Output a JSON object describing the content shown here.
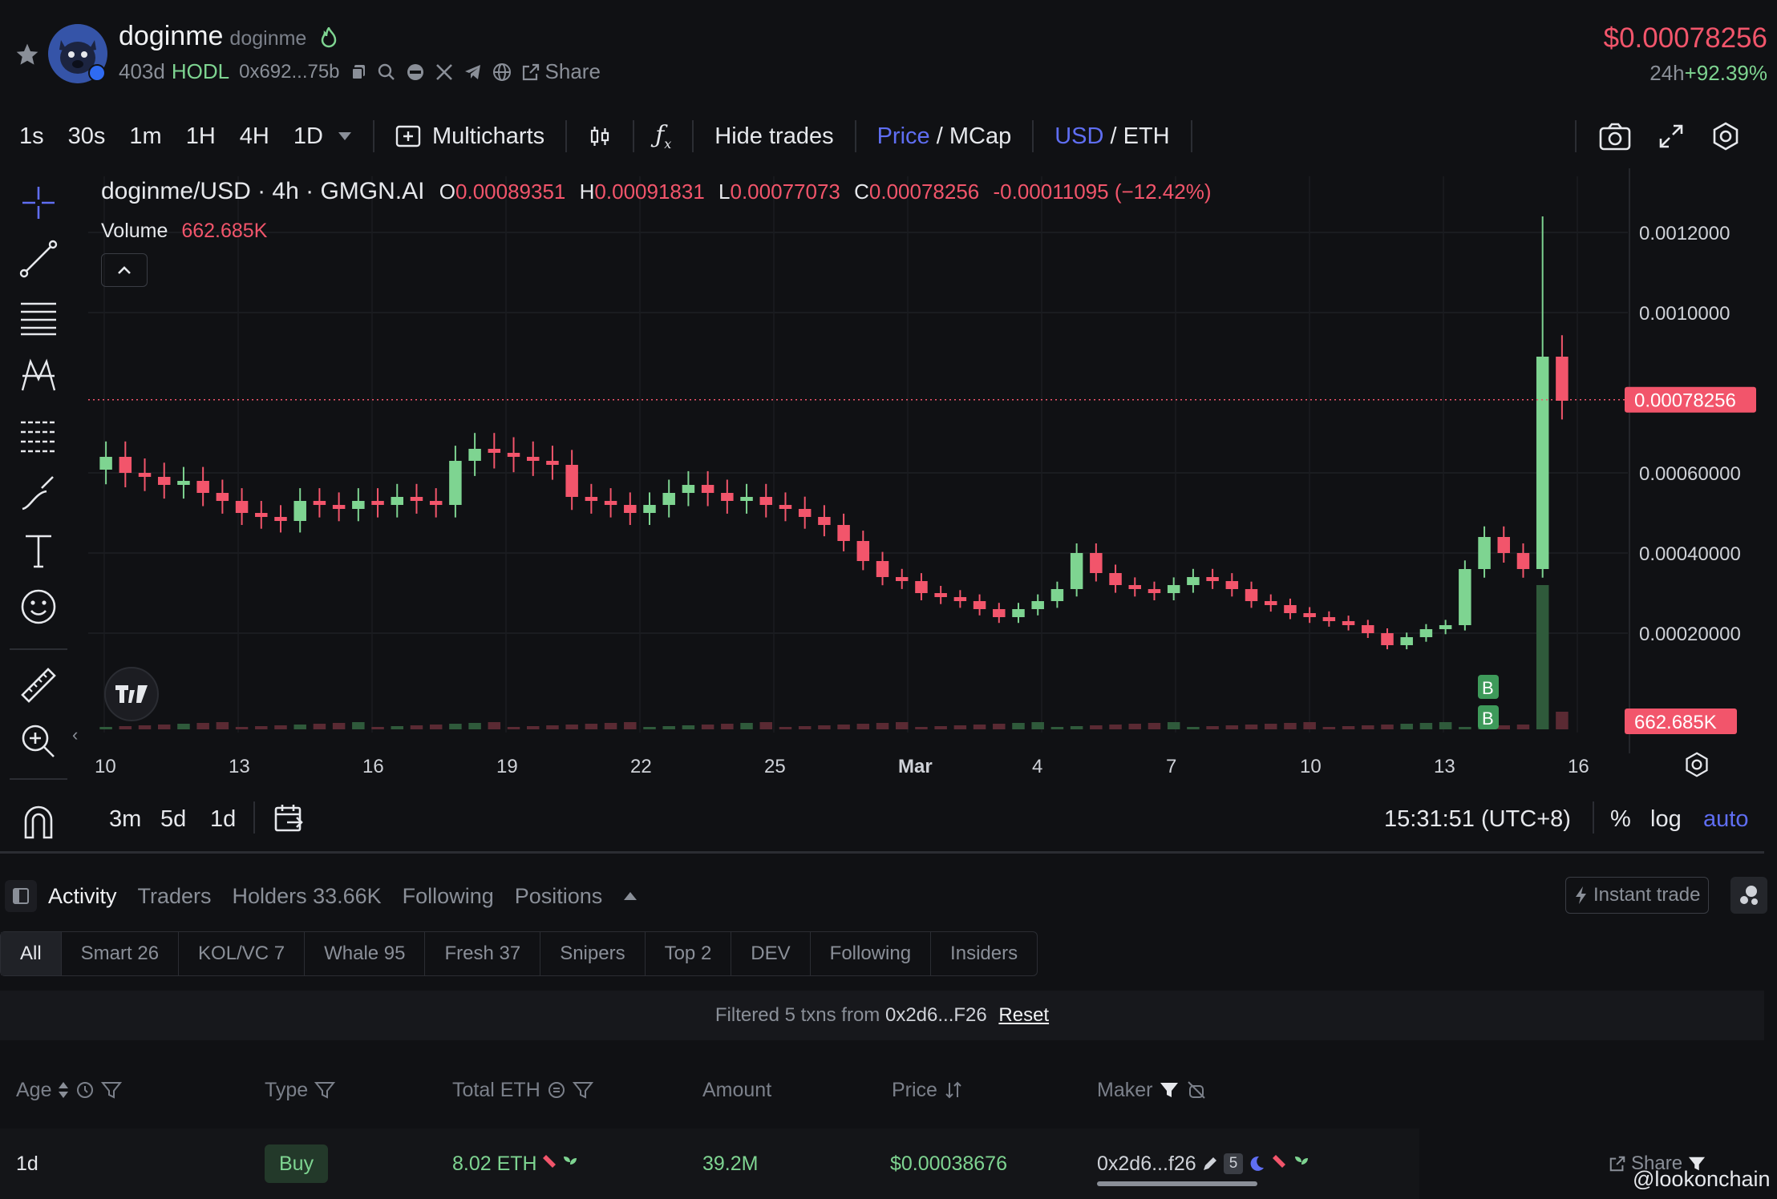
{
  "token": {
    "name": "doginme",
    "symbol": "doginme",
    "age_label": "403d",
    "hodl_label": "HODL",
    "address_short": "0x692...75b",
    "share_label": "Share",
    "price": "$0.00078256",
    "change_period": "24h",
    "change_pct": "+92.39%"
  },
  "toolbar": {
    "intervals": [
      "1s",
      "30s",
      "1m",
      "1H",
      "4H",
      "1D"
    ],
    "active_interval": "4H",
    "multicharts_label": "Multicharts",
    "hide_trades_label": "Hide trades",
    "price_label": "Price",
    "mcap_label": "/ MCap",
    "usd_label": "USD",
    "eth_label": "/ ETH"
  },
  "chart_header": {
    "symbol_line": "doginme/USD · 4h · GMGN.AI",
    "o_label": "O",
    "o_value": "0.00089351",
    "h_label": "H",
    "h_value": "0.00091831",
    "l_label": "L",
    "l_value": "0.00077073",
    "c_label": "C",
    "c_value": "0.00078256",
    "change": "-0.00011095 (−12.42%)",
    "volume_label": "Volume",
    "volume_value": "662.685K"
  },
  "chart_data": {
    "type": "candlestick",
    "y_ticks": [
      "0.0012000",
      "0.0010000",
      "0.00060000",
      "0.00040000",
      "0.00020000"
    ],
    "y_tick_values": [
      0.0012,
      0.001,
      0.0006,
      0.0004,
      0.0002
    ],
    "x_ticks": [
      "10",
      "13",
      "16",
      "19",
      "22",
      "25",
      "Mar",
      "4",
      "7",
      "10",
      "13",
      "16"
    ],
    "last_price_label": "0.00078256",
    "last_volume_label": "662.685K",
    "markers": [
      "B",
      "B"
    ],
    "colors": {
      "up": "#7ed491",
      "down": "#f2556b"
    },
    "series_close": [
      0.00064,
      0.0006,
      0.00059,
      0.00057,
      0.00058,
      0.00055,
      0.00053,
      0.0005,
      0.00049,
      0.00048,
      0.00053,
      0.00052,
      0.00051,
      0.00053,
      0.00052,
      0.00054,
      0.00053,
      0.00052,
      0.00063,
      0.00066,
      0.00065,
      0.00064,
      0.00063,
      0.00062,
      0.00054,
      0.00053,
      0.00052,
      0.0005,
      0.00052,
      0.00055,
      0.00057,
      0.00055,
      0.00053,
      0.00054,
      0.00052,
      0.00051,
      0.00049,
      0.00047,
      0.00043,
      0.00038,
      0.00034,
      0.00033,
      0.0003,
      0.00029,
      0.00028,
      0.00026,
      0.00024,
      0.00026,
      0.00028,
      0.00031,
      0.0004,
      0.00035,
      0.00032,
      0.00031,
      0.0003,
      0.00032,
      0.00034,
      0.00033,
      0.00031,
      0.00028,
      0.00027,
      0.00025,
      0.00024,
      0.00023,
      0.00022,
      0.0002,
      0.00017,
      0.00019,
      0.00021,
      0.00022,
      0.00036,
      0.00044,
      0.0004,
      0.00036,
      0.00089,
      0.00078
    ]
  },
  "chart_bottom": {
    "ranges": [
      "3m",
      "5d",
      "1d"
    ],
    "time": "15:31:51 (UTC+8)",
    "pct_label": "%",
    "log_label": "log",
    "auto_label": "auto"
  },
  "tabs": {
    "activity": "Activity",
    "traders": "Traders",
    "holders": "Holders 33.66K",
    "following": "Following",
    "positions": "Positions",
    "instant_trade": "Instant trade"
  },
  "filters": [
    "All",
    "Smart 26",
    "KOL/VC 7",
    "Whale 95",
    "Fresh 37",
    "Snipers",
    "Top 2",
    "DEV",
    "Following",
    "Insiders"
  ],
  "filtered": {
    "text": "Filtered 5 txns from",
    "address": "0x2d6...F26",
    "reset": "Reset"
  },
  "table": {
    "headers": [
      "Age",
      "Type",
      "Total ETH",
      "Amount",
      "Price",
      "Maker"
    ],
    "row": {
      "age": "1d",
      "type": "Buy",
      "total": "8.02 ETH",
      "amount": "39.2M",
      "price": "$0.00038676",
      "maker": "0x2d6...f26",
      "maker_count": "5",
      "share": "Share"
    }
  },
  "watermark": "@lookonchain"
}
